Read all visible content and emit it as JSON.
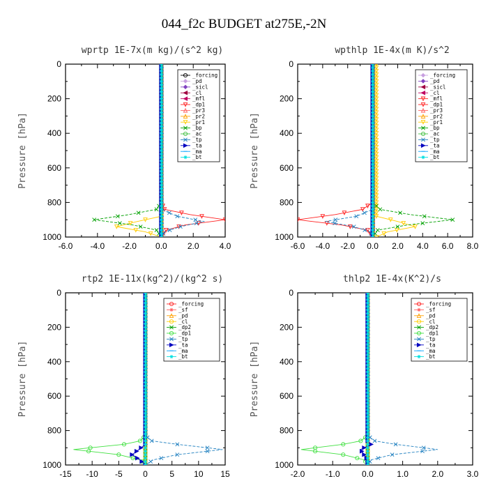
{
  "figure_title": "044_f2c  BUDGET at275E,-2N",
  "chart_data": [
    {
      "type": "line",
      "title": "wprtp  1E-7x(m kg)/(s^2 kg)",
      "ylabel": "Pressure [hPa]",
      "xlim": [
        -6,
        4
      ],
      "ylim": [
        1000,
        0
      ],
      "xticks": [
        "-6.0",
        "-4.0",
        "-2.0",
        "0.0",
        "2.0",
        "4.0"
      ],
      "xtick_values": [
        -6,
        -4,
        -2,
        0,
        2,
        4
      ],
      "yticks": [
        "0",
        "200",
        "400",
        "600",
        "800",
        "1000"
      ],
      "ytick_values": [
        0,
        200,
        400,
        600,
        800,
        1000
      ],
      "legend": "top-right",
      "series": [
        {
          "name": "_forcing",
          "color": "#000000",
          "marker": "o",
          "y": [
            0,
            820,
            860,
            900,
            920,
            960,
            1000
          ],
          "x": [
            0,
            0,
            0,
            0,
            0,
            0,
            0
          ]
        },
        {
          "name": "_pd",
          "color": "#c8a0e0",
          "marker": "d",
          "y": [
            0,
            1000
          ],
          "x": [
            0,
            0
          ]
        },
        {
          "name": "_sicl",
          "color": "#8040c0",
          "marker": "d",
          "y": [
            0,
            1000
          ],
          "x": [
            0,
            0
          ]
        },
        {
          "name": "_cl",
          "color": "#a00040",
          "marker": "<",
          "y": [
            0,
            1000
          ],
          "x": [
            0,
            0
          ]
        },
        {
          "name": "_mfl",
          "color": "#c00060",
          "marker": "<",
          "y": [
            0,
            1000
          ],
          "x": [
            0,
            0
          ]
        },
        {
          "name": "_dp1",
          "color": "#ff2020",
          "marker": "v",
          "y": [
            0,
            800,
            840,
            870,
            900,
            930,
            960,
            1000
          ],
          "x": [
            0,
            0,
            0.2,
            1.8,
            4.0,
            1.5,
            0.3,
            0
          ]
        },
        {
          "name": "_pr3",
          "color": "#ff6060",
          "marker": "^",
          "y": [
            0,
            1000
          ],
          "x": [
            0,
            0
          ]
        },
        {
          "name": "_pr2",
          "color": "#ffa000",
          "marker": "^",
          "y": [
            0,
            1000
          ],
          "x": [
            0,
            0
          ]
        },
        {
          "name": "_pr1",
          "color": "#ffcc00",
          "marker": "v",
          "y": [
            0,
            880,
            910,
            940,
            970,
            1000
          ],
          "x": [
            0,
            0,
            -1.5,
            -2.8,
            -1.0,
            0
          ]
        },
        {
          "name": "_bp",
          "color": "#00a000",
          "marker": "x",
          "y": [
            0,
            800,
            840,
            870,
            900,
            930,
            960,
            1000
          ],
          "x": [
            0,
            0,
            -0.3,
            -2.0,
            -4.2,
            -1.8,
            -0.3,
            0
          ]
        },
        {
          "name": "_ac",
          "color": "#40c040",
          "marker": "o",
          "y": [
            0,
            1000
          ],
          "x": [
            0,
            0
          ]
        },
        {
          "name": "_tp",
          "color": "#2080c0",
          "marker": "x",
          "y": [
            0,
            840,
            880,
            910,
            940,
            970,
            1000
          ],
          "x": [
            0,
            0,
            1.0,
            2.7,
            1.2,
            0.2,
            0
          ]
        },
        {
          "name": "_ta",
          "color": "#0000c0",
          "marker": ">",
          "y": [
            0,
            1000
          ],
          "x": [
            0,
            0
          ]
        },
        {
          "name": "_ma",
          "color": "#00a0ff",
          "marker": "-",
          "y": [
            0,
            1000
          ],
          "x": [
            0,
            0
          ]
        },
        {
          "name": "_bt",
          "color": "#00e0e0",
          "marker": "*",
          "y": [
            0,
            1000
          ],
          "x": [
            0,
            0
          ]
        }
      ]
    },
    {
      "type": "line",
      "title": "wpthlp  1E-4x(m K)/s^2",
      "ylabel": "Pressure [hPa]",
      "xlim": [
        -6,
        8
      ],
      "ylim": [
        1000,
        0
      ],
      "xticks": [
        "-6.0",
        "-4.0",
        "-2.0",
        "0.0",
        "2.0",
        "4.0",
        "6.0",
        "8.0"
      ],
      "xtick_values": [
        -6,
        -4,
        -2,
        0,
        2,
        4,
        6,
        8
      ],
      "yticks": [
        "0",
        "200",
        "400",
        "600",
        "800",
        "1000"
      ],
      "ytick_values": [
        0,
        200,
        400,
        600,
        800,
        1000
      ],
      "legend": "top-right",
      "series": [
        {
          "name": "_forcing",
          "color": "#c8a0e0",
          "marker": "d",
          "y": [
            0,
            1000
          ],
          "x": [
            0,
            0
          ]
        },
        {
          "name": "_pd",
          "color": "#8040c0",
          "marker": "d",
          "y": [
            0,
            1000
          ],
          "x": [
            0,
            0
          ]
        },
        {
          "name": "_sicl",
          "color": "#a00040",
          "marker": "<",
          "y": [
            0,
            1000
          ],
          "x": [
            0,
            0
          ]
        },
        {
          "name": "_cl",
          "color": "#c00060",
          "marker": "<",
          "y": [
            0,
            1000
          ],
          "x": [
            0,
            0
          ]
        },
        {
          "name": "_mfl",
          "color": "#ff2020",
          "marker": "v",
          "y": [
            0,
            1000
          ],
          "x": [
            0,
            0
          ]
        },
        {
          "name": "_dp1",
          "color": "#ff2020",
          "marker": "v",
          "y": [
            0,
            800,
            840,
            870,
            900,
            930,
            960,
            1000
          ],
          "x": [
            0,
            0,
            -0.8,
            -3.0,
            -6.0,
            -2.5,
            -0.4,
            0
          ]
        },
        {
          "name": "_pr3",
          "color": "#ff6060",
          "marker": "^",
          "y": [
            0,
            1000
          ],
          "x": [
            0,
            0
          ]
        },
        {
          "name": "_pr2",
          "color": "#ffa000",
          "marker": "^",
          "y": [
            0,
            1000
          ],
          "x": [
            0,
            0
          ]
        },
        {
          "name": "_pr1",
          "color": "#ffcc00",
          "marker": "v",
          "y": [
            0,
            880,
            910,
            940,
            970,
            1000
          ],
          "x": [
            0.3,
            0.3,
            2.0,
            3.4,
            1.2,
            0.3
          ]
        },
        {
          "name": "_bp",
          "color": "#00a000",
          "marker": "x",
          "y": [
            0,
            800,
            840,
            870,
            900,
            930,
            960,
            1000
          ],
          "x": [
            0,
            0,
            0.6,
            3.0,
            6.4,
            2.8,
            0.4,
            0
          ]
        },
        {
          "name": "_ac",
          "color": "#40c040",
          "marker": "o",
          "y": [
            0,
            1000
          ],
          "x": [
            0,
            0
          ]
        },
        {
          "name": "_tp",
          "color": "#2080c0",
          "marker": "x",
          "y": [
            0,
            840,
            880,
            910,
            940,
            970,
            1000
          ],
          "x": [
            0,
            0,
            -1.3,
            -3.8,
            -1.5,
            -0.2,
            0
          ]
        },
        {
          "name": "_ta",
          "color": "#0000c0",
          "marker": ">",
          "y": [
            0,
            1000
          ],
          "x": [
            0,
            0
          ]
        },
        {
          "name": "_ma",
          "color": "#00a0ff",
          "marker": "-",
          "y": [
            0,
            1000
          ],
          "x": [
            0,
            0
          ]
        },
        {
          "name": "_bt",
          "color": "#00e0e0",
          "marker": "*",
          "y": [
            0,
            1000
          ],
          "x": [
            0,
            0
          ]
        }
      ]
    },
    {
      "type": "line",
      "title": "rtp2  1E-11x(kg^2)/(kg^2 s)",
      "ylabel": "Pressure [hPa]",
      "xlim": [
        -15,
        15
      ],
      "ylim": [
        1000,
        0
      ],
      "xticks": [
        "-15",
        "-10",
        "-5",
        "0",
        "5",
        "10",
        "15"
      ],
      "xtick_values": [
        -15,
        -10,
        -5,
        0,
        5,
        10,
        15
      ],
      "yticks": [
        "0",
        "200",
        "400",
        "600",
        "800",
        "1000"
      ],
      "ytick_values": [
        0,
        200,
        400,
        600,
        800,
        1000
      ],
      "legend": "top-right",
      "series": [
        {
          "name": "_forcing",
          "color": "#ff2020",
          "marker": "o",
          "y": [
            0,
            1000
          ],
          "x": [
            0,
            0
          ]
        },
        {
          "name": "_sf",
          "color": "#ff6060",
          "marker": "*",
          "y": [
            0,
            1000
          ],
          "x": [
            0,
            0
          ]
        },
        {
          "name": "_pd",
          "color": "#ffa000",
          "marker": "^",
          "y": [
            0,
            1000
          ],
          "x": [
            0,
            0
          ]
        },
        {
          "name": "_cl",
          "color": "#ffcc00",
          "marker": "o",
          "y": [
            0,
            1000
          ],
          "x": [
            0,
            0
          ]
        },
        {
          "name": "_dp2",
          "color": "#00a000",
          "marker": "x",
          "y": [
            0,
            1000
          ],
          "x": [
            0,
            0
          ]
        },
        {
          "name": "_dp1",
          "color": "#40e040",
          "marker": "o",
          "y": [
            0,
            830,
            860,
            880,
            910,
            940,
            970,
            1000
          ],
          "x": [
            0,
            0,
            -1.0,
            -4.0,
            -13.5,
            -5.0,
            -1.0,
            0
          ]
        },
        {
          "name": "_tp",
          "color": "#2080c0",
          "marker": "x",
          "y": [
            0,
            830,
            860,
            880,
            910,
            940,
            970,
            1000
          ],
          "x": [
            0,
            0,
            1.2,
            6.0,
            14.5,
            6.0,
            1.5,
            0
          ]
        },
        {
          "name": "_ta",
          "color": "#0000c0",
          "marker": ">",
          "y": [
            0,
            880,
            910,
            940,
            970,
            1000
          ],
          "x": [
            0,
            0,
            -1.2,
            -2.5,
            -1.0,
            0
          ]
        },
        {
          "name": "_ma",
          "color": "#00a0ff",
          "marker": "-",
          "y": [
            0,
            1000
          ],
          "x": [
            0,
            0
          ]
        },
        {
          "name": "_bt",
          "color": "#00e0e0",
          "marker": "*",
          "y": [
            0,
            1000
          ],
          "x": [
            0,
            0
          ]
        }
      ]
    },
    {
      "type": "line",
      "title": "thlp2  1E-4x(K^2)/s",
      "ylabel": "Pressure [hPa]",
      "xlim": [
        -2,
        3
      ],
      "ylim": [
        1000,
        0
      ],
      "xticks": [
        "-2.0",
        "-1.0",
        "0.0",
        "1.0",
        "2.0",
        "3.0"
      ],
      "xtick_values": [
        -2,
        -1,
        0,
        1,
        2,
        3
      ],
      "yticks": [
        "0",
        "200",
        "400",
        "600",
        "800",
        "1000"
      ],
      "ytick_values": [
        0,
        200,
        400,
        600,
        800,
        1000
      ],
      "legend": "top-right",
      "series": [
        {
          "name": "_forcing",
          "color": "#ff2020",
          "marker": "o",
          "y": [
            0,
            1000
          ],
          "x": [
            0,
            0
          ]
        },
        {
          "name": "_sf",
          "color": "#ff6060",
          "marker": "*",
          "y": [
            0,
            1000
          ],
          "x": [
            0,
            0
          ]
        },
        {
          "name": "_pd",
          "color": "#ffa000",
          "marker": "^",
          "y": [
            0,
            1000
          ],
          "x": [
            0,
            0
          ]
        },
        {
          "name": "_cl",
          "color": "#ffcc00",
          "marker": "o",
          "y": [
            0,
            1000
          ],
          "x": [
            0,
            0
          ]
        },
        {
          "name": "_dp2",
          "color": "#00a000",
          "marker": "x",
          "y": [
            0,
            1000
          ],
          "x": [
            0,
            0
          ]
        },
        {
          "name": "_dp1",
          "color": "#40e040",
          "marker": "o",
          "y": [
            0,
            830,
            860,
            880,
            910,
            940,
            970,
            1000
          ],
          "x": [
            0,
            0,
            -0.2,
            -0.7,
            -1.9,
            -0.7,
            -0.1,
            0
          ]
        },
        {
          "name": "_tp",
          "color": "#2080c0",
          "marker": "x",
          "y": [
            0,
            830,
            860,
            880,
            910,
            940,
            970,
            1000
          ],
          "x": [
            0,
            0,
            0.2,
            0.8,
            2.0,
            0.7,
            0.1,
            0
          ]
        },
        {
          "name": "_ta",
          "color": "#0000c0",
          "marker": ">",
          "y": [
            0,
            860,
            880,
            910,
            940,
            970,
            1000
          ],
          "x": [
            0,
            0,
            0.1,
            -0.2,
            -0.1,
            0,
            0
          ]
        },
        {
          "name": "_ma",
          "color": "#00a0ff",
          "marker": "-",
          "y": [
            0,
            1000
          ],
          "x": [
            0,
            0
          ]
        },
        {
          "name": "_bt",
          "color": "#00e0e0",
          "marker": "*",
          "y": [
            0,
            1000
          ],
          "x": [
            0,
            0
          ]
        }
      ]
    }
  ]
}
